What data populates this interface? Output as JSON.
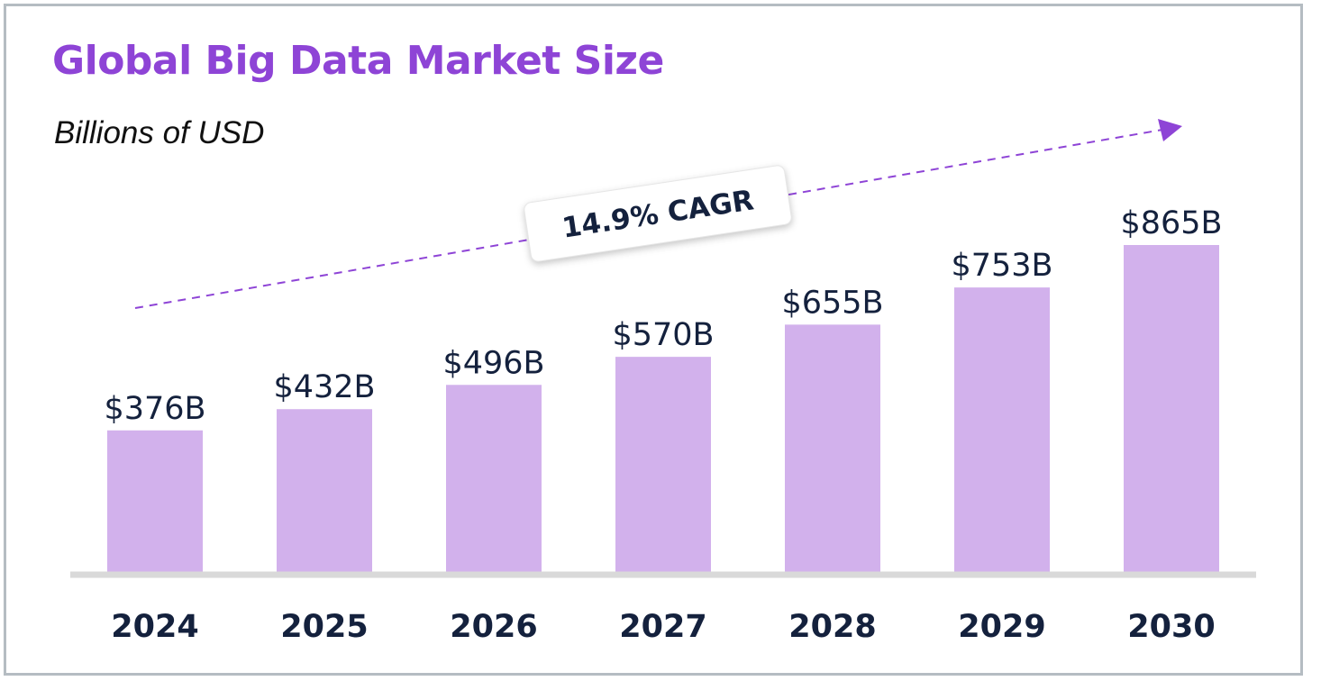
{
  "chart_data": {
    "type": "bar",
    "title": "Global Big Data Market Size",
    "subtitle": "Billions of USD",
    "categories": [
      "2024",
      "2025",
      "2026",
      "2027",
      "2028",
      "2029",
      "2030"
    ],
    "values": [
      376,
      432,
      496,
      570,
      655,
      753,
      865
    ],
    "value_labels": [
      "$376B",
      "$432B",
      "$496B",
      "$570B",
      "$655B",
      "$753B",
      "$865B"
    ],
    "ylim": [
      0,
      865
    ],
    "grid": false,
    "annotation": "14.9% CAGR",
    "colors": {
      "title": "#8e44d6",
      "bar": "#d2b1ec",
      "text": "#14213d",
      "trend": "#8e44d6"
    }
  }
}
